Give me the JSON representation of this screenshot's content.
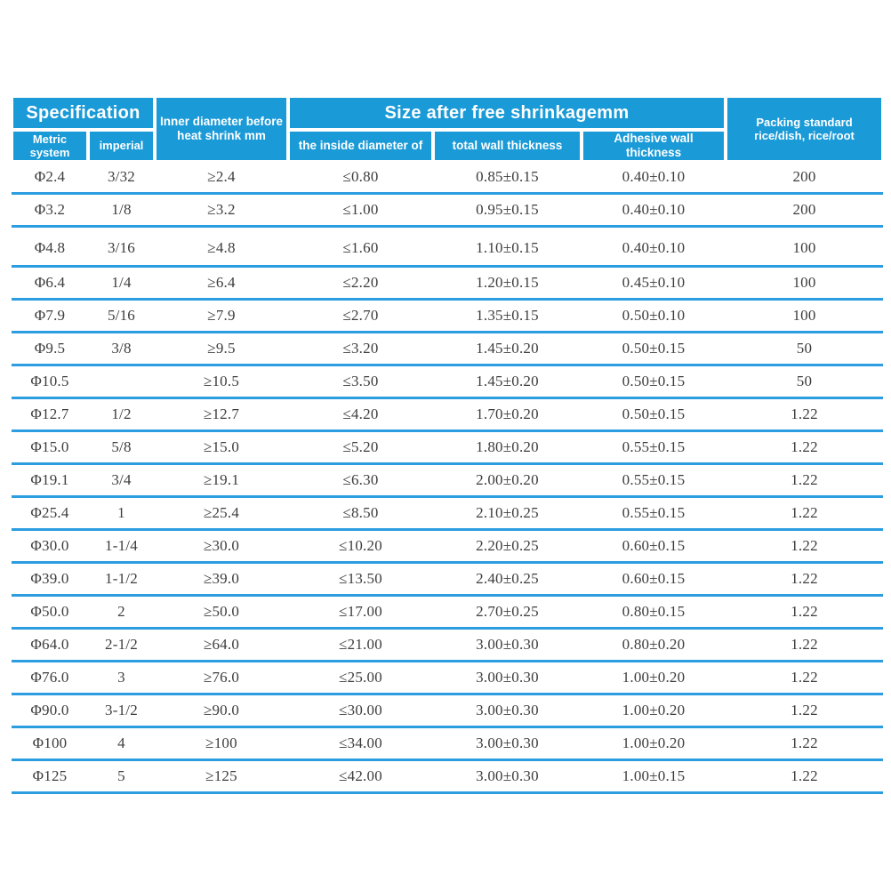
{
  "colors": {
    "header_blue": "#1a9ad7",
    "separator_blue": "#2b9de0",
    "body_text": "#3d3d3d",
    "header_text": "#ffffff",
    "background": "#ffffff"
  },
  "table": {
    "header": {
      "specification": "Specification",
      "metric_system": "Metric system",
      "imperial": "imperial",
      "inner_diameter_line1": "Inner diameter before",
      "inner_diameter_line2": "heat shrink mm",
      "size_after_free_shrinkage": "Size after free shrinkagemm",
      "inside_diameter": "the inside diameter of",
      "total_wall_thickness": "total wall thickness",
      "adhesive_wall_thickness": "Adhesive wall thickness",
      "packing_line1": "Packing standard",
      "packing_line2": "rice/dish, rice/root"
    },
    "columns": [
      "Metric system",
      "imperial",
      "Inner diameter before heat shrink mm",
      "the inside diameter of",
      "total wall thickness",
      "Adhesive wall thickness",
      "Packing standard rice/dish, rice/root"
    ],
    "rows": [
      [
        "Φ2.4",
        "3/32",
        "≥2.4",
        "≤0.80",
        "0.85±0.15",
        "0.40±0.10",
        "200"
      ],
      [
        "Φ3.2",
        "1/8",
        "≥3.2",
        "≤1.00",
        "0.95±0.15",
        "0.40±0.10",
        "200"
      ],
      [
        "Φ4.8",
        "3/16",
        "≥4.8",
        "≤1.60",
        "1.10±0.15",
        "0.40±0.10",
        "100"
      ],
      [
        "Φ6.4",
        "1/4",
        "≥6.4",
        "≤2.20",
        "1.20±0.15",
        "0.45±0.10",
        "100"
      ],
      [
        "Φ7.9",
        "5/16",
        "≥7.9",
        "≤2.70",
        "1.35±0.15",
        "0.50±0.10",
        "100"
      ],
      [
        "Φ9.5",
        "3/8",
        "≥9.5",
        "≤3.20",
        "1.45±0.20",
        "0.50±0.15",
        "50"
      ],
      [
        "Φ10.5",
        "",
        "≥10.5",
        "≤3.50",
        "1.45±0.20",
        "0.50±0.15",
        "50"
      ],
      [
        "Φ12.7",
        "1/2",
        "≥12.7",
        "≤4.20",
        "1.70±0.20",
        "0.50±0.15",
        "1.22"
      ],
      [
        "Φ15.0",
        "5/8",
        "≥15.0",
        "≤5.20",
        "1.80±0.20",
        "0.55±0.15",
        "1.22"
      ],
      [
        "Φ19.1",
        "3/4",
        "≥19.1",
        "≤6.30",
        "2.00±0.20",
        "0.55±0.15",
        "1.22"
      ],
      [
        "Φ25.4",
        "1",
        "≥25.4",
        "≤8.50",
        "2.10±0.25",
        "0.55±0.15",
        "1.22"
      ],
      [
        "Φ30.0",
        "1-1/4",
        "≥30.0",
        "≤10.20",
        "2.20±0.25",
        "0.60±0.15",
        "1.22"
      ],
      [
        "Φ39.0",
        "1-1/2",
        "≥39.0",
        "≤13.50",
        "2.40±0.25",
        "0.60±0.15",
        "1.22"
      ],
      [
        "Φ50.0",
        "2",
        "≥50.0",
        "≤17.00",
        "2.70±0.25",
        "0.80±0.15",
        "1.22"
      ],
      [
        "Φ64.0",
        "2-1/2",
        "≥64.0",
        "≤21.00",
        "3.00±0.30",
        "0.80±0.20",
        "1.22"
      ],
      [
        "Φ76.0",
        "3",
        "≥76.0",
        "≤25.00",
        "3.00±0.30",
        "1.00±0.20",
        "1.22"
      ],
      [
        "Φ90.0",
        "3-1/2",
        "≥90.0",
        "≤30.00",
        "3.00±0.30",
        "1.00±0.20",
        "1.22"
      ],
      [
        "Φ100",
        "4",
        "≥100",
        "≤34.00",
        "3.00±0.30",
        "1.00±0.20",
        "1.22"
      ],
      [
        "Φ125",
        "5",
        "≥125",
        "≤42.00",
        "3.00±0.30",
        "1.00±0.15",
        "1.22"
      ]
    ]
  }
}
